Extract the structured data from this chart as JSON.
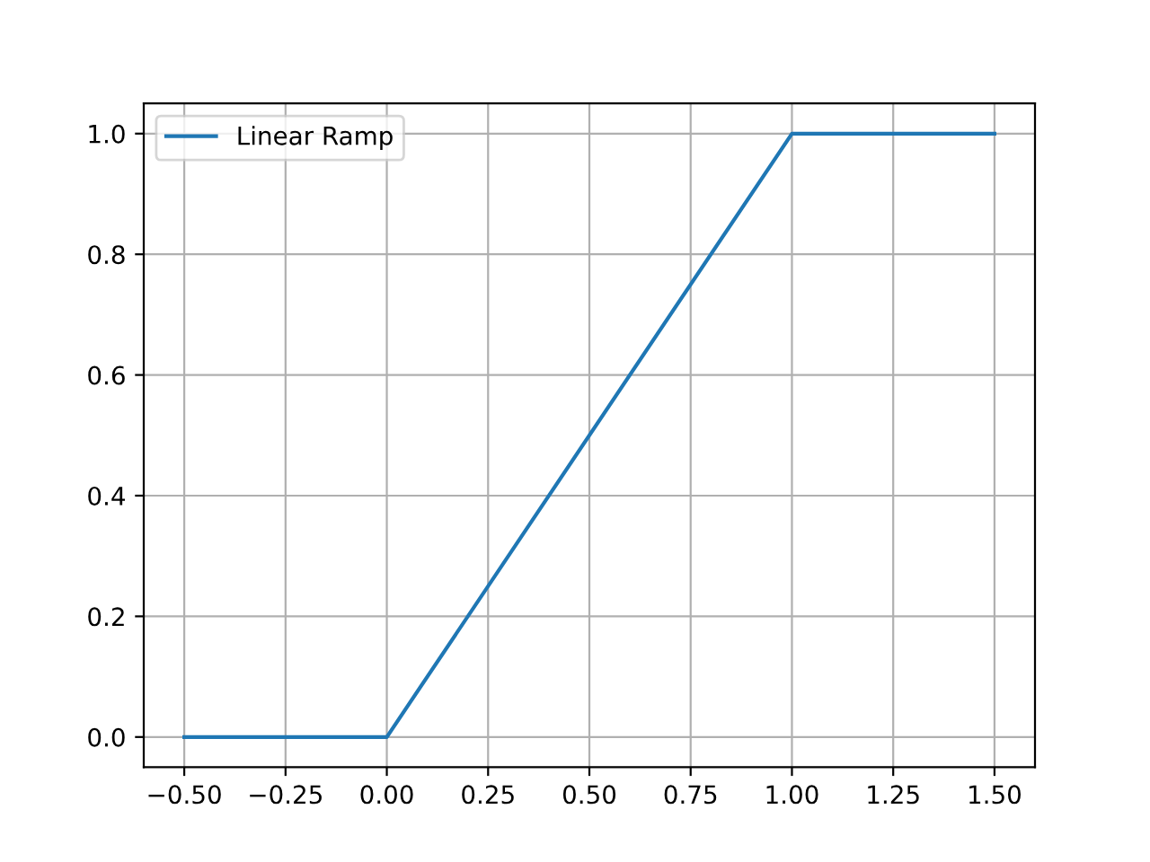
{
  "chart_data": {
    "type": "line",
    "x": [
      -0.5,
      0,
      1,
      1.5
    ],
    "series": [
      {
        "name": "Linear Ramp",
        "color": "#1f77b4",
        "values": [
          0,
          0,
          1,
          1
        ]
      }
    ],
    "xlim": [
      -0.6,
      1.6
    ],
    "ylim": [
      -0.05,
      1.05
    ],
    "xticks": [
      {
        "value": -0.5,
        "label": "−0.50"
      },
      {
        "value": -0.25,
        "label": "−0.25"
      },
      {
        "value": 0,
        "label": "0.00"
      },
      {
        "value": 0.25,
        "label": "0.25"
      },
      {
        "value": 0.5,
        "label": "0.50"
      },
      {
        "value": 0.75,
        "label": "0.75"
      },
      {
        "value": 1,
        "label": "1.00"
      },
      {
        "value": 1.25,
        "label": "1.25"
      },
      {
        "value": 1.5,
        "label": "1.50"
      }
    ],
    "yticks": [
      {
        "value": 0,
        "label": "0.0"
      },
      {
        "value": 0.2,
        "label": "0.2"
      },
      {
        "value": 0.4,
        "label": "0.4"
      },
      {
        "value": 0.6,
        "label": "0.6"
      },
      {
        "value": 0.8,
        "label": "0.8"
      },
      {
        "value": 1,
        "label": "1.0"
      }
    ],
    "grid": true,
    "legend": "top left"
  }
}
